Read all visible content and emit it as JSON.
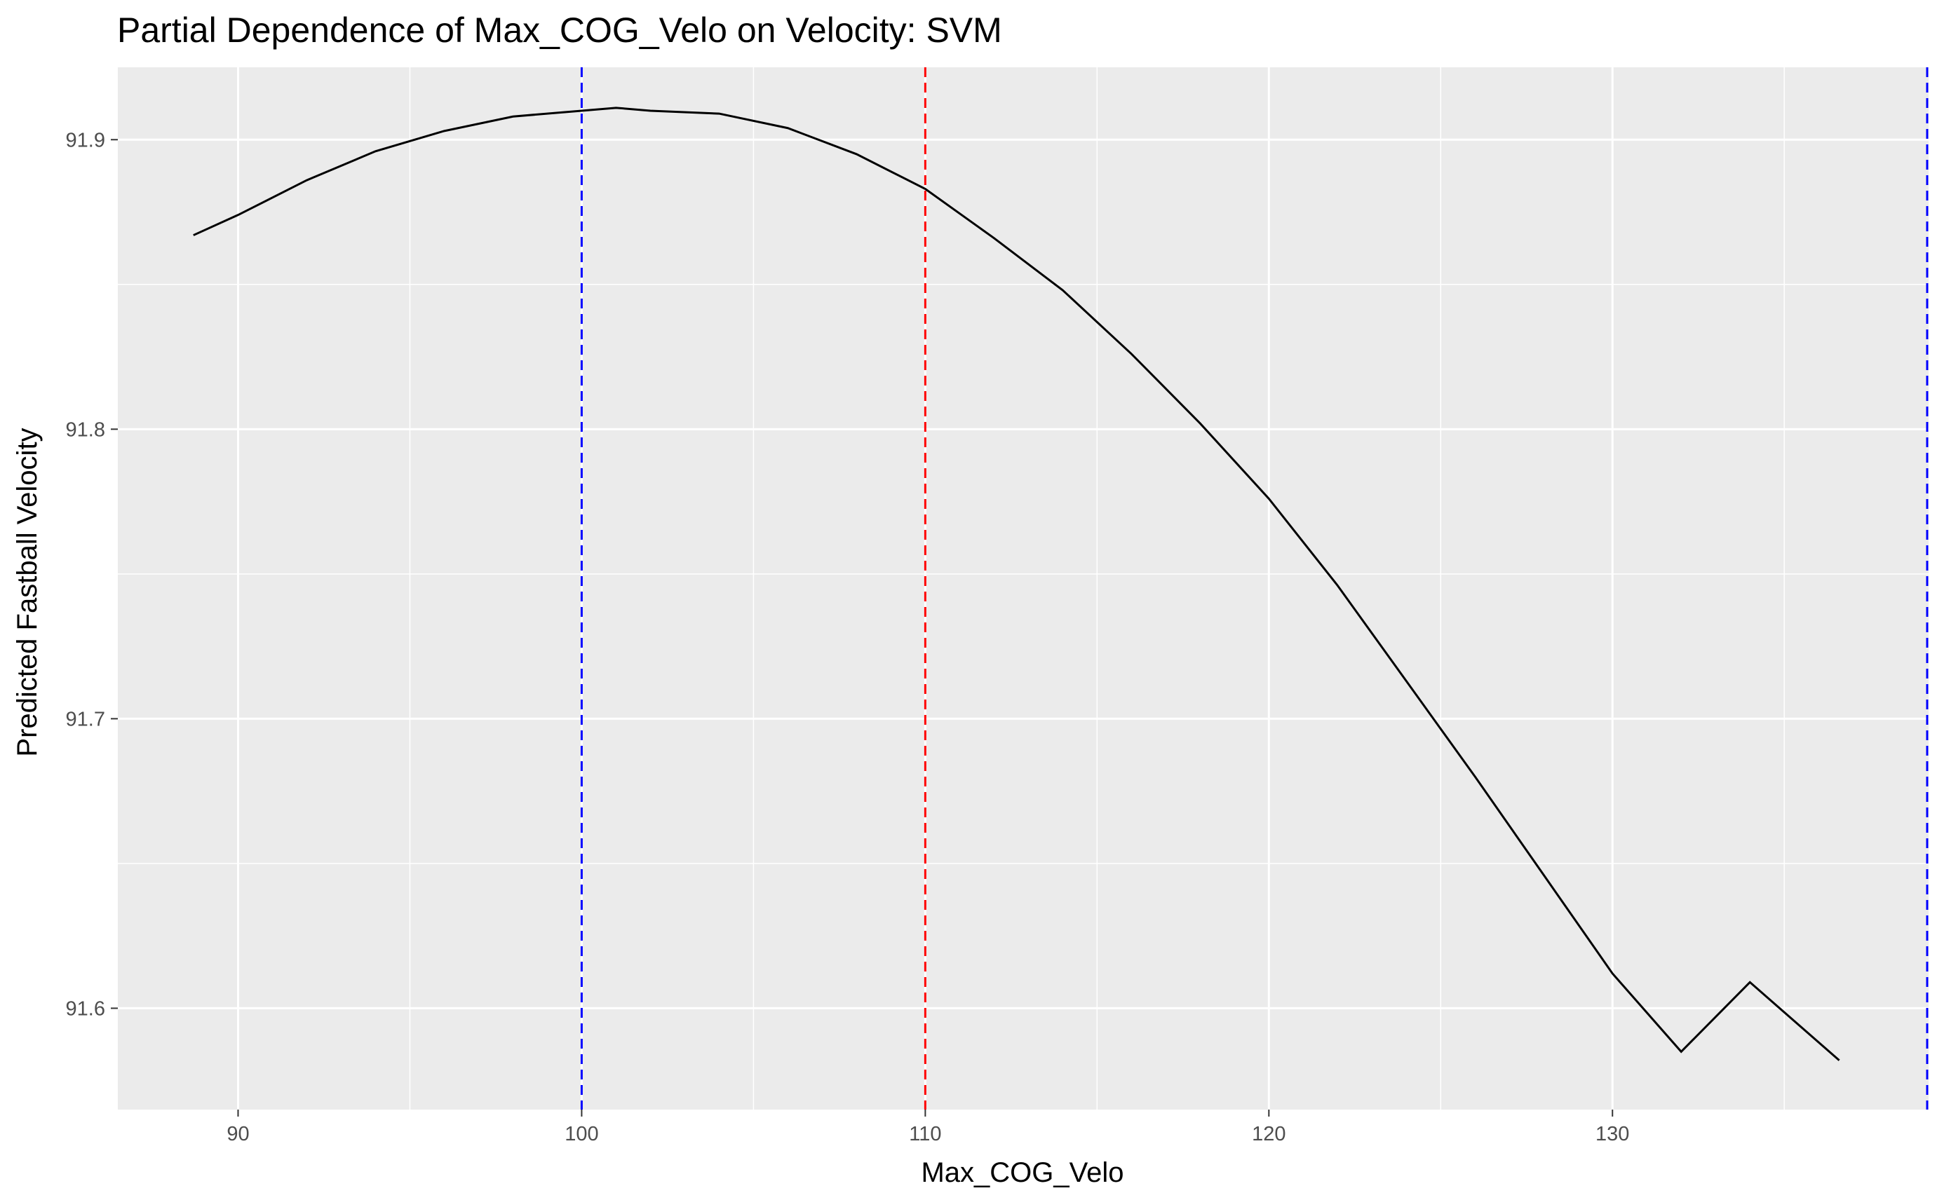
{
  "chart_data": {
    "type": "line",
    "title": "Partial Dependence of Max_COG_Velo on Velocity: SVM",
    "xlabel": "Max_COG_Velo",
    "ylabel": "Predicted Fastball Velocity",
    "xlim": [
      86.5,
      139.2
    ],
    "ylim": [
      91.565,
      91.925
    ],
    "x_ticks": [
      90,
      100,
      110,
      120,
      130
    ],
    "x_tick_labels": [
      "90",
      "100",
      "110",
      "120",
      "130"
    ],
    "y_ticks": [
      91.6,
      91.7,
      91.8,
      91.9
    ],
    "y_tick_labels": [
      "91.6",
      "91.7",
      "91.8",
      "91.9"
    ],
    "grid": true,
    "series": [
      {
        "color": "#000000",
        "x": [
          88.7,
          90,
          92,
          94,
          96,
          98,
          100,
          101,
          102,
          104,
          106,
          108,
          110,
          112,
          114,
          116,
          118,
          120,
          122,
          124,
          126,
          128,
          130,
          132,
          134,
          136.6
        ],
        "y": [
          91.867,
          91.874,
          91.886,
          91.896,
          91.903,
          91.908,
          91.91,
          91.911,
          91.91,
          91.909,
          91.904,
          91.895,
          91.883,
          91.866,
          91.848,
          91.826,
          91.802,
          91.776,
          91.746,
          91.713,
          91.68,
          91.646,
          91.612,
          91.585,
          91.609,
          91.582
        ]
      }
    ],
    "reference_lines": [
      {
        "x": 100,
        "color": "#0000ff",
        "style": "dashed"
      },
      {
        "x": 110,
        "color": "#ff0000",
        "style": "dashed"
      },
      {
        "x": 139.2,
        "color": "#0000ff",
        "style": "dashed"
      }
    ],
    "colors": {
      "panel": "#ebebeb",
      "grid": "#ffffff",
      "tick_text": "#4d4d4d"
    }
  }
}
